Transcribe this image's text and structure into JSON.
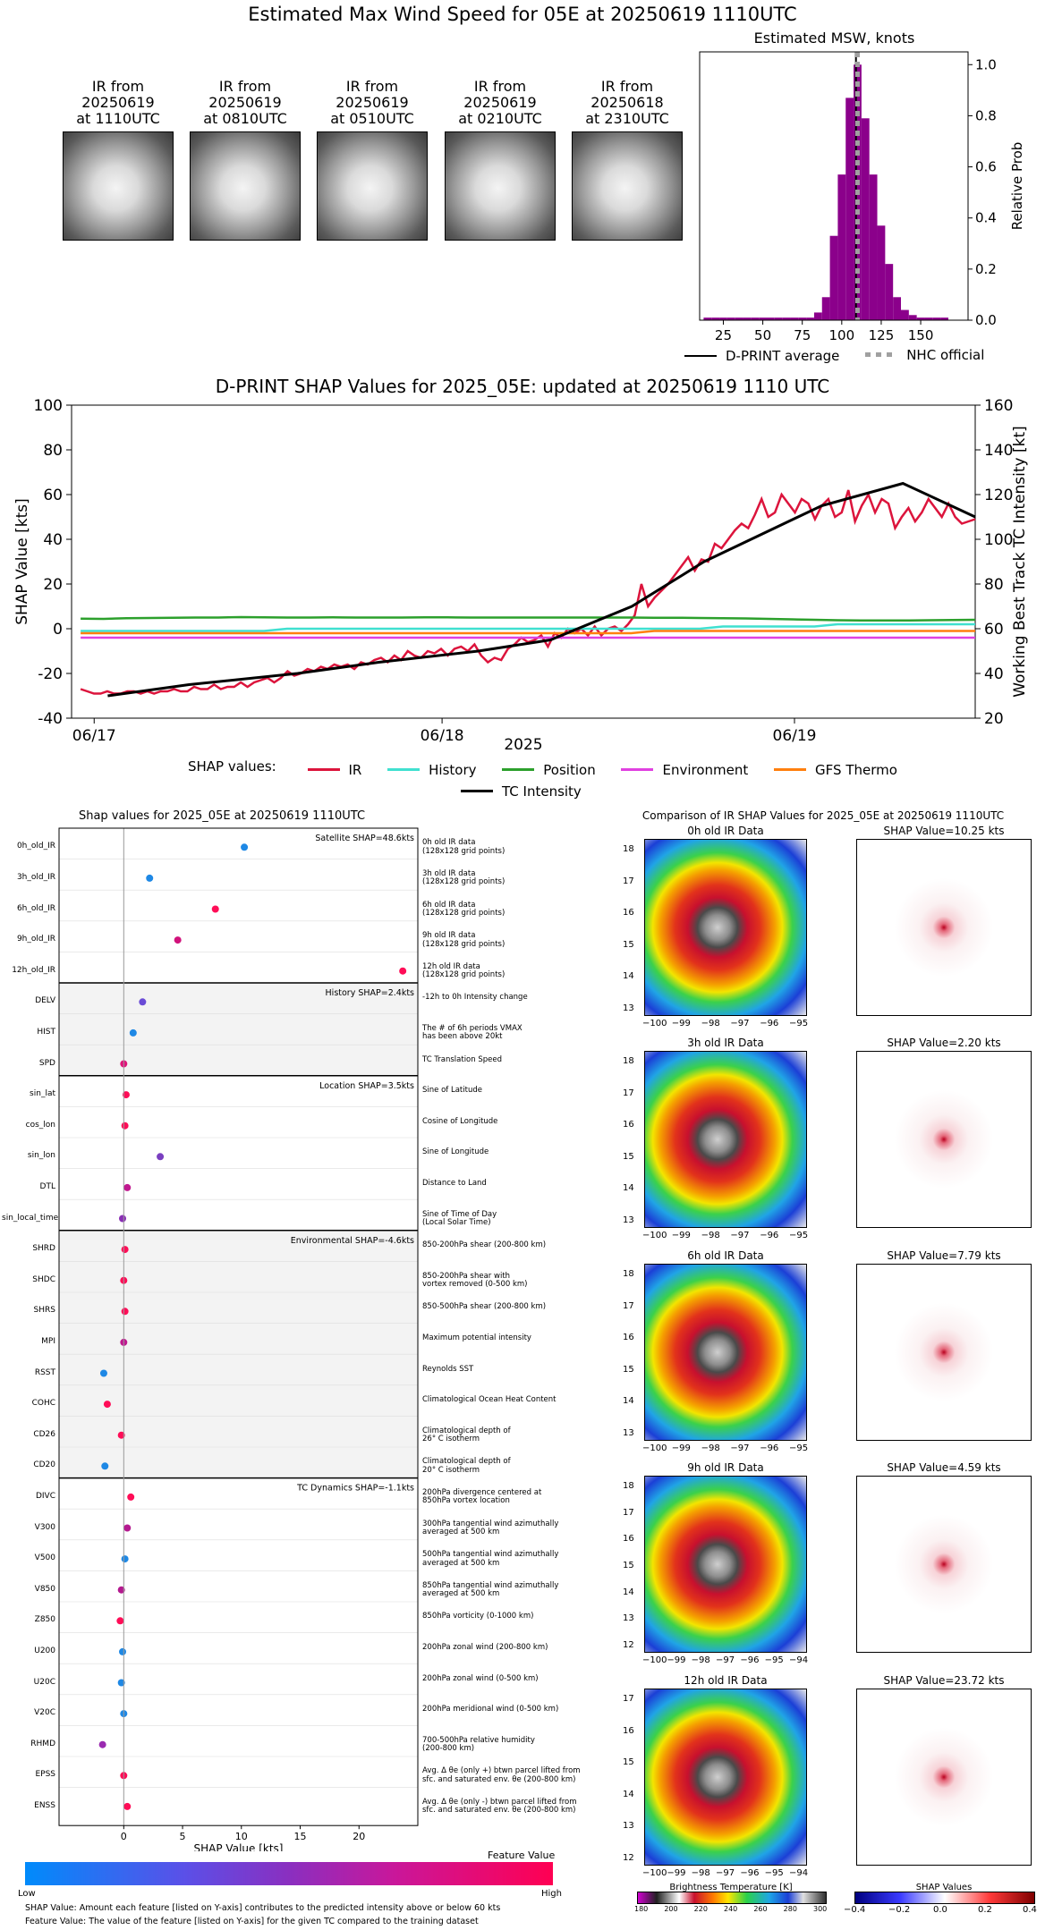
{
  "page_title": "Estimated Max Wind Speed for 05E at 20250619 1110UTC",
  "ir_thumbnails": [
    {
      "label": "IR from\n20250619\nat 1110UTC"
    },
    {
      "label": "IR from\n20250619\nat 0810UTC"
    },
    {
      "label": "IR from\n20250619\nat 0510UTC"
    },
    {
      "label": "IR from\n20250619\nat 0210UTC"
    },
    {
      "label": "IR from\n20250618\nat 2310UTC"
    }
  ],
  "chart_data": [
    {
      "type": "bar",
      "title": "Estimated MSW, knots",
      "ylabel": "Relative Prob",
      "xlim": [
        10,
        180
      ],
      "ylim": [
        0,
        1.05
      ],
      "xticks": [
        "25",
        "50",
        "75",
        "100",
        "125",
        "150"
      ],
      "yticks": [
        "0.0",
        "0.2",
        "0.4",
        "0.6",
        "0.8",
        "1.0"
      ],
      "bin_width": 5,
      "bins": [
        15,
        20,
        25,
        30,
        35,
        40,
        45,
        50,
        55,
        60,
        65,
        70,
        75,
        80,
        85,
        90,
        95,
        100,
        105,
        110,
        115,
        120,
        125,
        130,
        135,
        140,
        145,
        150,
        155,
        160,
        165
      ],
      "values": [
        0.01,
        0.01,
        0.01,
        0.01,
        0.01,
        0.01,
        0.01,
        0.01,
        0.01,
        0.01,
        0.01,
        0.01,
        0.01,
        0.01,
        0.03,
        0.09,
        0.33,
        0.57,
        0.87,
        1.0,
        0.79,
        0.57,
        0.37,
        0.22,
        0.09,
        0.04,
        0.02,
        0.01,
        0.01,
        0.01,
        0.01
      ],
      "dprint_average": 109,
      "nhc_official": 110,
      "legend": [
        "D-PRINT average",
        "NHC official"
      ],
      "colors": {
        "bars": "#8b008b",
        "average": "#000000",
        "nhc": "#a0a0a0"
      }
    },
    {
      "type": "line",
      "title": "D-PRINT SHAP Values for 2025_05E: updated at 20250619 1110 UTC",
      "xlabel": "2025",
      "ylabel": "SHAP Value [kts]",
      "y2label": "Working Best Track TC Intensity [kt]",
      "ylim": [
        -40,
        100
      ],
      "y2lim": [
        20,
        160
      ],
      "yticks": [
        "-40",
        "-20",
        "0",
        "20",
        "40",
        "60",
        "80",
        "100"
      ],
      "y2ticks": [
        "20",
        "40",
        "60",
        "80",
        "100",
        "120",
        "140",
        "160"
      ],
      "xticks": [
        "06/17",
        "06/18",
        "06/19"
      ],
      "legend_prefix": "SHAP values:",
      "series": [
        {
          "name": "IR",
          "color": "#dc143c",
          "values": [
            -27,
            -28,
            -29,
            -29,
            -28,
            -29,
            -29,
            -28,
            -28,
            -29,
            -28,
            -29,
            -28,
            -28,
            -27,
            -28,
            -28,
            -26,
            -27,
            -27,
            -25,
            -27,
            -26,
            -26,
            -24,
            -26,
            -24,
            -23,
            -22,
            -24,
            -22,
            -19,
            -21,
            -20,
            -18,
            -19,
            -17,
            -18,
            -16,
            -17,
            -16,
            -18,
            -15,
            -16,
            -14,
            -13,
            -15,
            -12,
            -14,
            -10,
            -12,
            -13,
            -10,
            -11,
            -9,
            -12,
            -9,
            -8,
            -10,
            -7,
            -12,
            -15,
            -13,
            -14,
            -9,
            -7,
            -4,
            -6,
            -5,
            -3,
            -8,
            -2,
            -4,
            0,
            -2,
            0,
            -3,
            1,
            -3,
            0,
            1,
            -1,
            2,
            6,
            20,
            10,
            14,
            17,
            20,
            24,
            28,
            32,
            26,
            31,
            30,
            38,
            36,
            40,
            44,
            47,
            45,
            51,
            58,
            50,
            52,
            60,
            56,
            52,
            58,
            56,
            49,
            55,
            58,
            50,
            52,
            62,
            48,
            55,
            60,
            52,
            58,
            56,
            45,
            50,
            54,
            48,
            52,
            58,
            54,
            50,
            56,
            50,
            47,
            48,
            49
          ]
        },
        {
          "name": "History",
          "color": "#40e0d0",
          "values": [
            -1,
            -1,
            -1,
            -1,
            -1,
            -1,
            -1,
            -1,
            -1,
            0,
            0,
            0,
            0,
            0,
            0,
            0,
            0,
            0,
            0,
            0,
            0,
            0,
            0,
            0,
            0,
            0,
            0,
            0,
            1,
            1,
            1,
            1,
            1,
            2,
            2,
            2,
            2,
            2,
            2,
            2
          ]
        },
        {
          "name": "Position",
          "color": "#2ca02c",
          "values": [
            4.5,
            4.4,
            4.7,
            4.8,
            4.9,
            5.0,
            5.0,
            5.2,
            5.1,
            5.0,
            5.0,
            5.1,
            5.0,
            5.0,
            5.0,
            5.1,
            5.1,
            5.0,
            5.0,
            5.0,
            5.0,
            5.0,
            5.0,
            5.0,
            5.0,
            4.9,
            4.9,
            4.8,
            4.7,
            4.6,
            4.4,
            4.2,
            4.0,
            3.8,
            3.7,
            3.7,
            3.7,
            3.8,
            3.9,
            4.0
          ]
        },
        {
          "name": "Environment",
          "color": "#e040e0",
          "values": [
            -4,
            -4,
            -4,
            -4,
            -4,
            -4,
            -4,
            -4,
            -4,
            -4,
            -4,
            -4,
            -4,
            -4,
            -4,
            -4,
            -4,
            -4,
            -4,
            -4,
            -4,
            -4,
            -4,
            -4,
            -4,
            -4,
            -4,
            -4,
            -4,
            -4,
            -4,
            -4,
            -4,
            -4,
            -4,
            -4,
            -4,
            -4,
            -4,
            -4
          ]
        },
        {
          "name": "GFS Thermo",
          "color": "#ff7f0e",
          "values": [
            -2,
            -2,
            -2,
            -2,
            -2,
            -2,
            -2,
            -2,
            -2,
            -2,
            -2,
            -2,
            -2,
            -2,
            -2,
            -2,
            -2,
            -2,
            -2,
            -2,
            -2,
            -2,
            -2,
            -2,
            -2,
            -1,
            -1,
            -1,
            -1,
            -1,
            -1,
            -1,
            -1,
            -1,
            -1,
            -1,
            -1,
            -1,
            -1,
            -1
          ]
        },
        {
          "name": "TC Intensity",
          "color": "#000000",
          "axis": "right",
          "x_frac": [
            0.04,
            0.13,
            0.25,
            0.34,
            0.45,
            0.53,
            0.62,
            0.7,
            0.83,
            0.92,
            1.0
          ],
          "values": [
            30,
            35,
            40,
            45,
            50,
            55,
            70,
            90,
            115,
            125,
            110
          ]
        }
      ]
    },
    {
      "type": "scatter",
      "title": "Shap values for 2025_05E at 20250619 1110UTC",
      "xlabel": "SHAP Value [kts]",
      "xlim": [
        -5.5,
        25
      ],
      "xticks": [
        "0",
        "5",
        "10",
        "15",
        "20"
      ],
      "colorbar_label": "Feature Value",
      "colorbar_low": "Low",
      "colorbar_high": "High",
      "groups": [
        {
          "label": "Satellite SHAP=48.6kts",
          "shaded": false,
          "features": [
            {
              "name": "0h_old_IR",
              "value": 10.25,
              "color": "#1e88e5",
              "desc": "0h old IR data\n(128x128 grid points)"
            },
            {
              "name": "3h_old_IR",
              "value": 2.2,
              "color": "#1e88e5",
              "desc": "3h old IR data\n(128x128 grid points)"
            },
            {
              "name": "6h_old_IR",
              "value": 7.79,
              "color": "#ff0d57",
              "desc": "6h old IR data\n(128x128 grid points)"
            },
            {
              "name": "9h_old_IR",
              "value": 4.59,
              "color": "#d1127b",
              "desc": "9h old IR data\n(128x128 grid points)"
            },
            {
              "name": "12h_old_IR",
              "value": 23.72,
              "color": "#ff0d57",
              "desc": "12h old IR data\n(128x128 grid points)"
            }
          ]
        },
        {
          "label": "History SHAP=2.4kts",
          "shaded": true,
          "features": [
            {
              "name": "DELV",
              "value": 1.6,
              "color": "#6a4bd6",
              "desc": "-12h to 0h Intensity change"
            },
            {
              "name": "HIST",
              "value": 0.8,
              "color": "#1e88e5",
              "desc": "The # of 6h periods VMAX\nhas been above 20kt"
            },
            {
              "name": "SPD",
              "value": 0.0,
              "color": "#e0137a",
              "desc": "TC Translation Speed"
            }
          ]
        },
        {
          "label": "Location SHAP=3.5kts",
          "shaded": false,
          "features": [
            {
              "name": "sin_lat",
              "value": 0.2,
              "color": "#ff0d57",
              "desc": "Sine of Latitude"
            },
            {
              "name": "cos_lon",
              "value": 0.1,
              "color": "#ff0d57",
              "desc": "Cosine of Longitude"
            },
            {
              "name": "sin_lon",
              "value": 3.1,
              "color": "#7a3fc0",
              "desc": "Sine of Longitude"
            },
            {
              "name": "DTL",
              "value": 0.3,
              "color": "#c0188f",
              "desc": "Distance to Land"
            },
            {
              "name": "sin_local_time",
              "value": -0.1,
              "color": "#8a2fb5",
              "desc": "Sine of Time of Day\n(Local Solar Time)"
            }
          ]
        },
        {
          "label": "Environmental SHAP=-4.6kts",
          "shaded": true,
          "features": [
            {
              "name": "SHRD",
              "value": 0.1,
              "color": "#ff0d57",
              "desc": "850-200hPa shear (200-800 km)"
            },
            {
              "name": "SHDC",
              "value": 0.0,
              "color": "#ff0d57",
              "desc": "850-200hPa shear with\nvortex removed (0-500 km)"
            },
            {
              "name": "SHRS",
              "value": 0.1,
              "color": "#ff0d57",
              "desc": "850-500hPa shear (200-800 km)"
            },
            {
              "name": "MPI",
              "value": 0.0,
              "color": "#c0188f",
              "desc": "Maximum potential intensity"
            },
            {
              "name": "RSST",
              "value": -1.7,
              "color": "#1e88e5",
              "desc": "Reynolds SST"
            },
            {
              "name": "COHC",
              "value": -1.4,
              "color": "#ff0d57",
              "desc": "Climatological Ocean Heat Content"
            },
            {
              "name": "CD26",
              "value": -0.2,
              "color": "#ff0d57",
              "desc": "Climatological depth of\n26° C isotherm"
            },
            {
              "name": "CD20",
              "value": -1.6,
              "color": "#1e88e5",
              "desc": "Climatological depth of\n20° C isotherm"
            }
          ]
        },
        {
          "label": "TC Dynamics SHAP=-1.1kts",
          "shaded": false,
          "features": [
            {
              "name": "DIVC",
              "value": 0.6,
              "color": "#ff0d57",
              "desc": "200hPa divergence centered at\n850hPa vortex location"
            },
            {
              "name": "V300",
              "value": 0.3,
              "color": "#b4198f",
              "desc": "300hPa tangential wind azimuthally\naveraged at 500 km"
            },
            {
              "name": "V500",
              "value": 0.1,
              "color": "#1e88e5",
              "desc": "500hPa tangential wind azimuthally\naveraged at 500 km"
            },
            {
              "name": "V850",
              "value": -0.2,
              "color": "#b4198f",
              "desc": "850hPa tangential wind azimuthally\naveraged at 500 km"
            },
            {
              "name": "Z850",
              "value": -0.3,
              "color": "#ff0d57",
              "desc": "850hPa vorticity (0-1000 km)"
            },
            {
              "name": "U200",
              "value": -0.1,
              "color": "#1e88e5",
              "desc": "200hPa zonal wind (200-800 km)"
            },
            {
              "name": "U20C",
              "value": -0.2,
              "color": "#1e88e5",
              "desc": "200hPa zonal wind (0-500 km)"
            },
            {
              "name": "V20C",
              "value": 0.0,
              "color": "#1e88e5",
              "desc": "200hPa meridional wind (0-500 km)"
            },
            {
              "name": "RHMD",
              "value": -1.8,
              "color": "#9a2bb0",
              "desc": "700-500hPa relative humidity\n(200-800 km)"
            },
            {
              "name": "EPSS",
              "value": 0.0,
              "color": "#ff0d57",
              "desc": "Avg. Δ θe (only +) btwn parcel lifted from\nsfc. and saturated env. θe (200-800 km)"
            },
            {
              "name": "ENSS",
              "value": 0.3,
              "color": "#ff0d57",
              "desc": "Avg. Δ θe (only -) btwn parcel lifted from\nsfc. and saturated env. θe (200-800 km)"
            }
          ]
        }
      ]
    }
  ],
  "legend_text": {
    "shap_values_label": "SHAP values:",
    "ir": "IR",
    "history": "History",
    "position": "Position",
    "environment": "Environment",
    "gfs_thermo": "GFS Thermo",
    "tc_intensity": "TC Intensity",
    "dprint_average": "D-PRINT average",
    "nhc_official": "NHC official"
  },
  "comparison": {
    "title": "Comparison of IR SHAP Values for 2025_05E at 20250619 1110UTC",
    "rows": [
      {
        "ir_title": "0h old IR Data",
        "shap_title": "SHAP Value=10.25 kts",
        "yticks": [
          "18",
          "17",
          "16",
          "15",
          "14",
          "13"
        ],
        "xticks": [
          "−100",
          "−99",
          "−98",
          "−97",
          "−96",
          "−95"
        ]
      },
      {
        "ir_title": "3h old IR Data",
        "shap_title": "SHAP Value=2.20 kts",
        "yticks": [
          "18",
          "17",
          "16",
          "15",
          "14",
          "13"
        ],
        "xticks": [
          "−100",
          "−99",
          "−98",
          "−97",
          "−96",
          "−95"
        ]
      },
      {
        "ir_title": "6h old IR Data",
        "shap_title": "SHAP Value=7.79 kts",
        "yticks": [
          "18",
          "17",
          "16",
          "15",
          "14",
          "13"
        ],
        "xticks": [
          "−100",
          "−99",
          "−98",
          "−97",
          "−96",
          "−95"
        ]
      },
      {
        "ir_title": "9h old IR Data",
        "shap_title": "SHAP Value=4.59 kts",
        "yticks": [
          "18",
          "17",
          "16",
          "15",
          "14",
          "13",
          "12"
        ],
        "xticks": [
          "−100",
          "−99",
          "−98",
          "−97",
          "−96",
          "−95",
          "−94"
        ]
      },
      {
        "ir_title": "12h old IR Data",
        "shap_title": "SHAP Value=23.72 kts",
        "yticks": [
          "17",
          "16",
          "15",
          "14",
          "13",
          "12"
        ],
        "xticks": [
          "−100",
          "−99",
          "−98",
          "−97",
          "−96",
          "−95",
          "−94"
        ]
      }
    ],
    "bt_colorbar_label": "Brightness Temperature [K]",
    "bt_ticks": [
      "180",
      "200",
      "220",
      "240",
      "260",
      "280",
      "300"
    ],
    "shap_colorbar_label": "SHAP Values",
    "shap_ticks": [
      "−0.4",
      "−0.2",
      "0.0",
      "0.2",
      "0.4"
    ]
  },
  "footnotes": {
    "line1": "SHAP Value: Amount each feature [listed on Y-axis] contributes to the predicted intensity above or below 60 kts",
    "line2": "Feature Value: The value of the feature [listed on Y-axis] for the given TC compared to the training dataset"
  }
}
